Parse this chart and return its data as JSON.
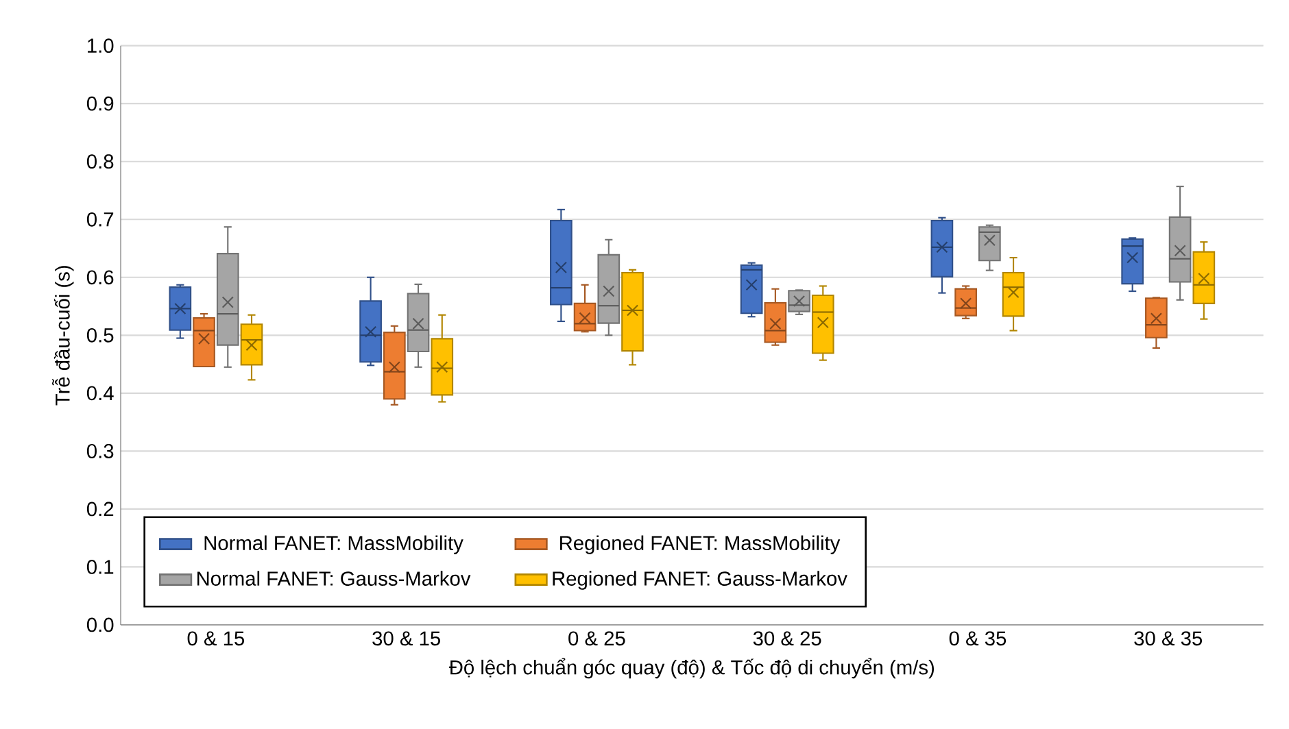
{
  "chart_data": {
    "type": "box",
    "xlabel": "Độ lệch chuẩn góc quay (độ) & Tốc độ di chuyển (m/s)",
    "ylabel": "Trễ đầu-cuối (s)",
    "categories": [
      "0 & 15",
      "30 & 15",
      "0 & 25",
      "30 & 25",
      "0 & 35",
      "30 & 35"
    ],
    "ylim": [
      0,
      1
    ],
    "yticks": [
      {
        "value": 0,
        "label": "0.0"
      },
      {
        "value": 0.1,
        "label": "0.1"
      },
      {
        "value": 0.2,
        "label": "0.2"
      },
      {
        "value": 0.3,
        "label": "0.3"
      },
      {
        "value": 0.4,
        "label": "0.4"
      },
      {
        "value": 0.5,
        "label": "0.5"
      },
      {
        "value": 0.6,
        "label": "0.6"
      },
      {
        "value": 0.7,
        "label": "0.7"
      },
      {
        "value": 0.8,
        "label": "0.8"
      },
      {
        "value": 0.9,
        "label": "0.9"
      },
      {
        "value": 1,
        "label": "1.0"
      }
    ],
    "grid": "y",
    "legend": "bottom left",
    "series": [
      {
        "name": "Normal FANET: MassMobility",
        "color": "#4472c4",
        "boxes": [
          {
            "low": 0.495,
            "q1": 0.509,
            "median": 0.546,
            "q3": 0.583,
            "high": 0.587,
            "mean": 0.546
          },
          {
            "low": 0.448,
            "q1": 0.454,
            "median": 0.5,
            "q3": 0.559,
            "high": 0.6,
            "mean": 0.506
          },
          {
            "low": 0.524,
            "q1": 0.553,
            "median": 0.582,
            "q3": 0.698,
            "high": 0.717,
            "mean": 0.617
          },
          {
            "low": 0.532,
            "q1": 0.538,
            "median": 0.613,
            "q3": 0.621,
            "high": 0.625,
            "mean": 0.587
          },
          {
            "low": 0.573,
            "q1": 0.601,
            "median": 0.652,
            "q3": 0.698,
            "high": 0.703,
            "mean": 0.652
          },
          {
            "low": 0.576,
            "q1": 0.589,
            "median": 0.654,
            "q3": 0.666,
            "high": 0.668,
            "mean": 0.634
          }
        ]
      },
      {
        "name": "Regioned FANET: MassMobility",
        "color": "#ed7d31",
        "boxes": [
          {
            "low": 0.446,
            "q1": 0.446,
            "median": 0.508,
            "q3": 0.53,
            "high": 0.537,
            "mean": 0.494
          },
          {
            "low": 0.38,
            "q1": 0.39,
            "median": 0.437,
            "q3": 0.505,
            "high": 0.516,
            "mean": 0.445
          },
          {
            "low": 0.506,
            "q1": 0.508,
            "median": 0.52,
            "q3": 0.555,
            "high": 0.587,
            "mean": 0.53
          },
          {
            "low": 0.483,
            "q1": 0.488,
            "median": 0.508,
            "q3": 0.556,
            "high": 0.58,
            "mean": 0.52
          },
          {
            "low": 0.529,
            "q1": 0.534,
            "median": 0.547,
            "q3": 0.58,
            "high": 0.585,
            "mean": 0.555
          },
          {
            "low": 0.478,
            "q1": 0.496,
            "median": 0.518,
            "q3": 0.564,
            "high": 0.565,
            "mean": 0.529
          }
        ]
      },
      {
        "name": "Normal FANET: Gauss-Markov",
        "color": "#a5a5a5",
        "boxes": [
          {
            "low": 0.445,
            "q1": 0.483,
            "median": 0.537,
            "q3": 0.641,
            "high": 0.687,
            "mean": 0.557
          },
          {
            "low": 0.445,
            "q1": 0.472,
            "median": 0.509,
            "q3": 0.572,
            "high": 0.588,
            "mean": 0.52
          },
          {
            "low": 0.5,
            "q1": 0.521,
            "median": 0.551,
            "q3": 0.639,
            "high": 0.665,
            "mean": 0.576
          },
          {
            "low": 0.536,
            "q1": 0.541,
            "median": 0.552,
            "q3": 0.577,
            "high": 0.578,
            "mean": 0.559
          },
          {
            "low": 0.612,
            "q1": 0.629,
            "median": 0.678,
            "q3": 0.687,
            "high": 0.69,
            "mean": 0.664
          },
          {
            "low": 0.561,
            "q1": 0.592,
            "median": 0.632,
            "q3": 0.704,
            "high": 0.757,
            "mean": 0.646
          }
        ]
      },
      {
        "name": "Regioned FANET: Gauss-Markov",
        "color": "#ffc000",
        "boxes": [
          {
            "low": 0.423,
            "q1": 0.449,
            "median": 0.492,
            "q3": 0.519,
            "high": 0.535,
            "mean": 0.483
          },
          {
            "low": 0.385,
            "q1": 0.397,
            "median": 0.443,
            "q3": 0.494,
            "high": 0.535,
            "mean": 0.445
          },
          {
            "low": 0.449,
            "q1": 0.473,
            "median": 0.543,
            "q3": 0.608,
            "high": 0.613,
            "mean": 0.543
          },
          {
            "low": 0.457,
            "q1": 0.469,
            "median": 0.54,
            "q3": 0.569,
            "high": 0.585,
            "mean": 0.522
          },
          {
            "low": 0.508,
            "q1": 0.533,
            "median": 0.583,
            "q3": 0.608,
            "high": 0.634,
            "mean": 0.574
          },
          {
            "low": 0.528,
            "q1": 0.555,
            "median": 0.587,
            "q3": 0.644,
            "high": 0.661,
            "mean": 0.598
          }
        ]
      }
    ]
  }
}
